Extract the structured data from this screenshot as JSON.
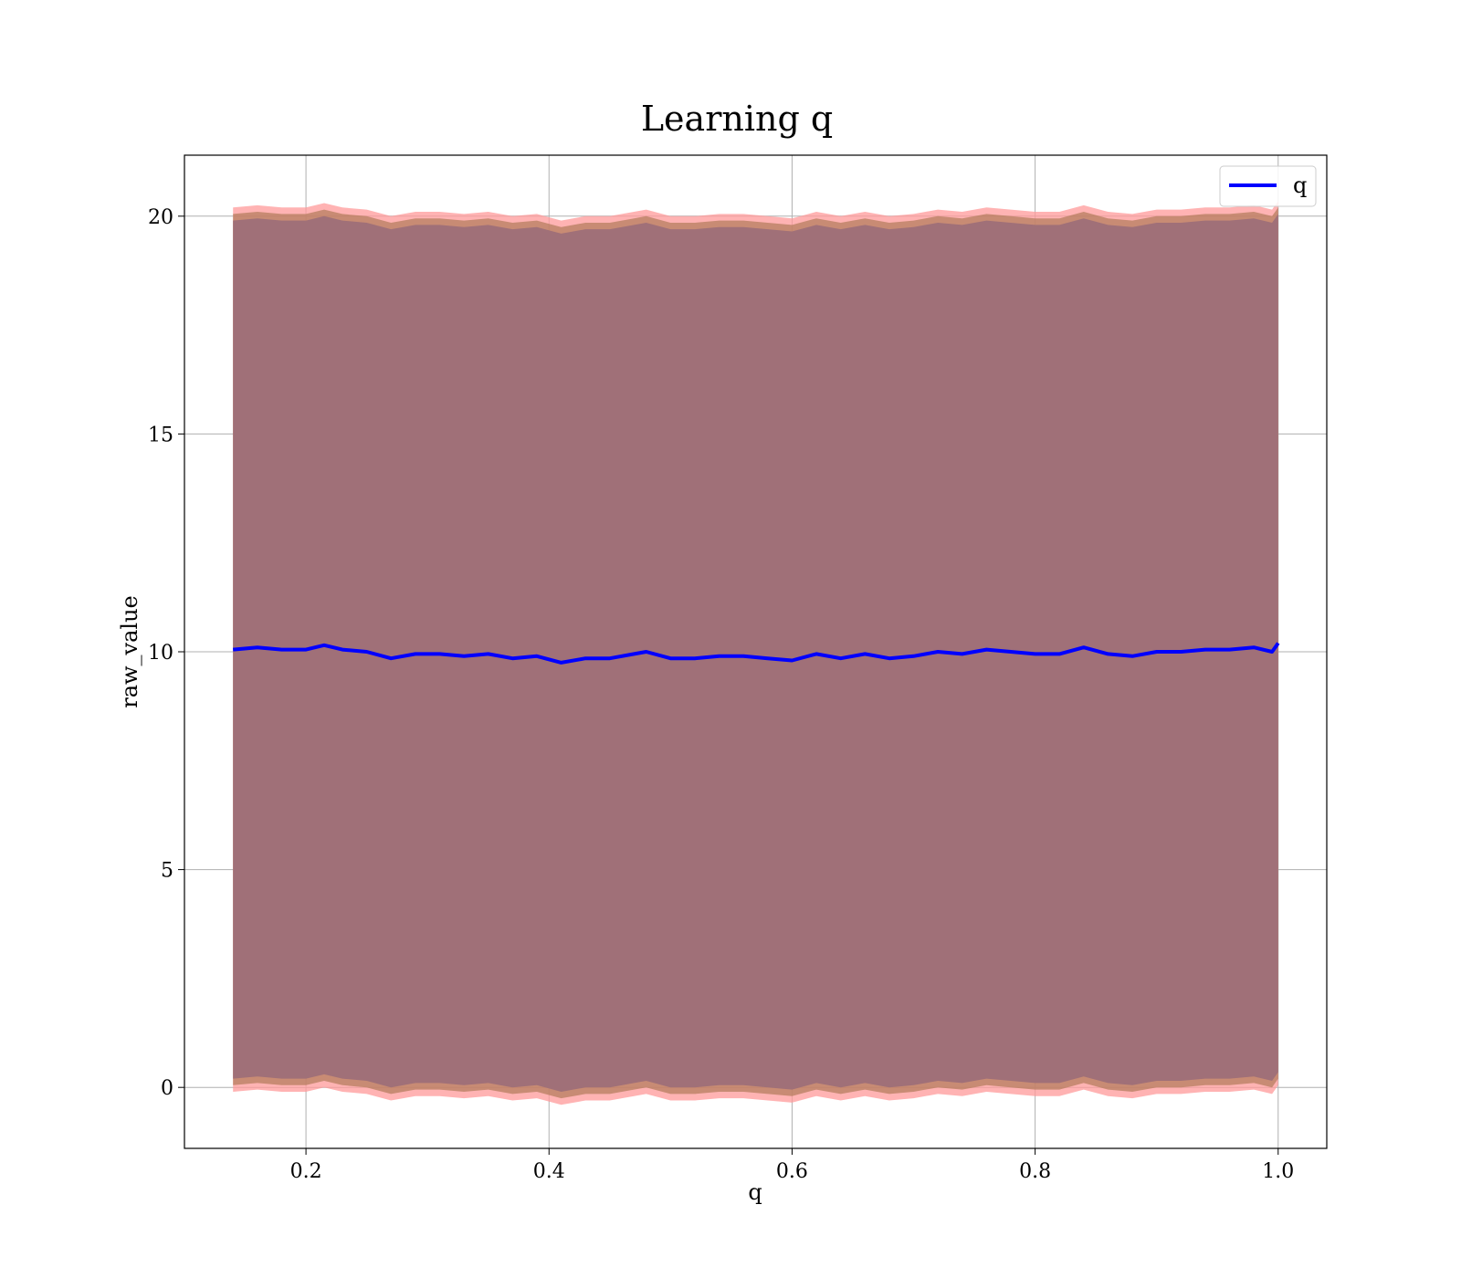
{
  "chart_data": {
    "type": "line",
    "title": "Learning q",
    "xlabel": "q",
    "ylabel": "raw_value",
    "xlim": [
      0.1,
      1.04
    ],
    "ylim": [
      -1.4,
      21.4
    ],
    "xticks": [
      0.2,
      0.4,
      0.6,
      0.8,
      1.0
    ],
    "xtick_labels": [
      "0.2",
      "0.4",
      "0.6",
      "0.8",
      "1.0"
    ],
    "yticks": [
      0,
      5,
      10,
      15,
      20
    ],
    "ytick_labels": [
      "0",
      "5",
      "10",
      "15",
      "20"
    ],
    "grid": true,
    "legend": {
      "position": "top-right",
      "entries": [
        {
          "label": "q",
          "color": "#0000ff"
        }
      ]
    },
    "x": [
      0.14,
      0.16,
      0.18,
      0.2,
      0.215,
      0.23,
      0.25,
      0.27,
      0.29,
      0.31,
      0.33,
      0.35,
      0.37,
      0.39,
      0.41,
      0.43,
      0.45,
      0.47,
      0.48,
      0.5,
      0.52,
      0.54,
      0.56,
      0.58,
      0.6,
      0.62,
      0.64,
      0.66,
      0.68,
      0.7,
      0.72,
      0.74,
      0.76,
      0.78,
      0.8,
      0.82,
      0.84,
      0.86,
      0.88,
      0.9,
      0.92,
      0.94,
      0.96,
      0.98,
      0.995,
      1.0
    ],
    "series": [
      {
        "name": "q",
        "color": "#0000ff",
        "values": [
          10.05,
          10.1,
          10.05,
          10.05,
          10.15,
          10.05,
          10.0,
          9.85,
          9.95,
          9.95,
          9.9,
          9.95,
          9.85,
          9.9,
          9.75,
          9.85,
          9.85,
          9.95,
          10.0,
          9.85,
          9.85,
          9.9,
          9.9,
          9.85,
          9.8,
          9.95,
          9.85,
          9.95,
          9.85,
          9.9,
          10.0,
          9.95,
          10.05,
          10.0,
          9.95,
          9.95,
          10.1,
          9.95,
          9.9,
          10.0,
          10.0,
          10.05,
          10.05,
          10.1,
          10.0,
          10.2
        ]
      }
    ],
    "bands": [
      {
        "offset": 10.15,
        "color": "#ff9999",
        "opacity": 0.75
      },
      {
        "offset": 10.0,
        "color": "#b07a5a",
        "opacity": 0.7
      },
      {
        "offset": 9.85,
        "color": "#a07078",
        "opacity": 1.0
      }
    ]
  }
}
